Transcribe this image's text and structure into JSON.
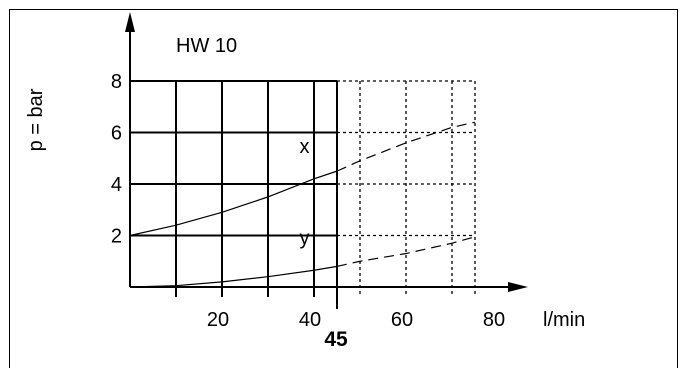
{
  "chart_data": {
    "type": "line",
    "title": "HW 10",
    "ylabel": "p = bar",
    "xlabel": "l/min",
    "xlim": [
      0,
      80
    ],
    "ylim": [
      0,
      8
    ],
    "x_ticks": [
      20,
      40,
      60,
      80
    ],
    "y_ticks": [
      2,
      4,
      6,
      8
    ],
    "x_gridlines": [
      10,
      20,
      30,
      40,
      50,
      60,
      70,
      75
    ],
    "y_gridlines": [
      2,
      4,
      6,
      8
    ],
    "grid": true,
    "solid_grid_limit_x": 45,
    "marker": {
      "x": 45,
      "label": "45"
    },
    "series": [
      {
        "name": "x",
        "x": [
          0,
          10,
          20,
          30,
          40,
          45,
          50,
          60,
          70,
          75
        ],
        "y": [
          2.0,
          2.4,
          2.9,
          3.5,
          4.2,
          4.5,
          4.9,
          5.6,
          6.2,
          6.4
        ],
        "dashed_from_x": 45
      },
      {
        "name": "y",
        "x": [
          0,
          10,
          20,
          30,
          40,
          45,
          50,
          60,
          70,
          75
        ],
        "y": [
          0,
          0.05,
          0.2,
          0.4,
          0.65,
          0.8,
          1.0,
          1.3,
          1.7,
          1.95
        ],
        "dashed_from_x": 45
      }
    ]
  }
}
